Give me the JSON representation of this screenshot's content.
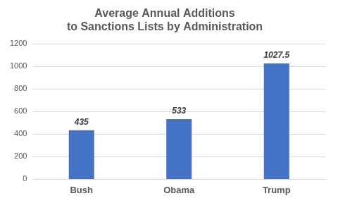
{
  "chart_data": {
    "type": "bar",
    "title": [
      "Average Annual Additions",
      "to Sanctions Lists by Administration"
    ],
    "categories": [
      "Bush",
      "Obama",
      "Trump"
    ],
    "values": [
      435,
      533,
      1027.5
    ],
    "color": "#4472c4",
    "ylim": [
      0,
      1200
    ],
    "yticks": [
      0,
      200,
      400,
      600,
      800,
      1000,
      1200
    ],
    "grid": true,
    "data_labels": true
  }
}
